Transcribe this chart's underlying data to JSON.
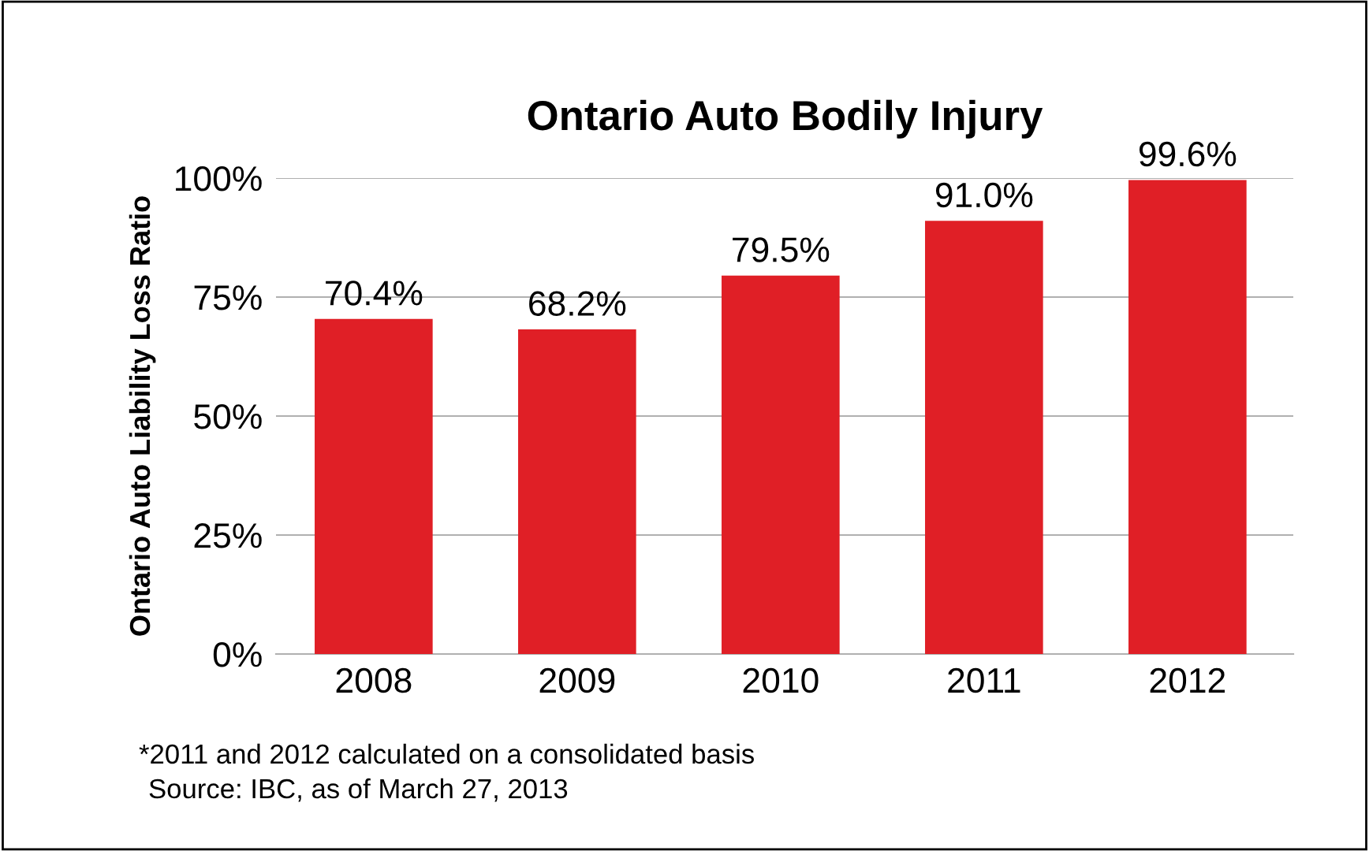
{
  "chart_data": {
    "type": "bar",
    "title": "Ontario Auto Bodily Injury",
    "ylabel": "Ontario Auto Liability Loss Ratio",
    "categories": [
      "2008",
      "2009",
      "2010",
      "2011",
      "2012"
    ],
    "values": [
      70.4,
      68.2,
      79.5,
      91.0,
      99.6
    ],
    "color": "#e01f26",
    "value_labels": [
      "70.4%",
      "68.2%",
      "79.5%",
      "91.0%",
      "99.6%"
    ],
    "ylim": [
      0,
      100
    ],
    "yticks": [
      {
        "value": 0,
        "label": "0%"
      },
      {
        "value": 25,
        "label": "25%"
      },
      {
        "value": 50,
        "label": "50%"
      },
      {
        "value": 75,
        "label": "75%"
      },
      {
        "value": 100,
        "label": "100%"
      }
    ],
    "grid": "y",
    "annotations": [
      "*2011 and 2012 calculated on a consolidated basis",
      "Source: IBC, as of March 27, 2013"
    ]
  }
}
